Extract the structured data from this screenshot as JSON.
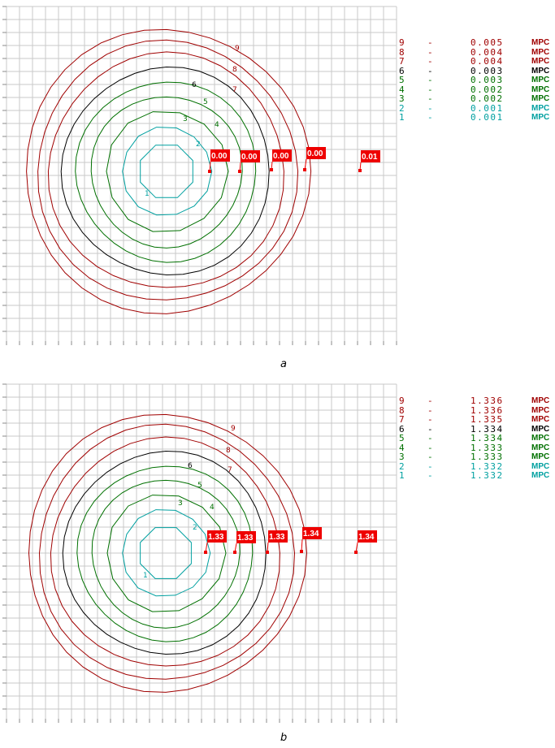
{
  "colors": {
    "grid": "#c8c8c8",
    "axis_ticks": "#888888",
    "marker": "#ee0000",
    "marker_text": "#ffffff",
    "level_colors": {
      "1": "#00a0a0",
      "2": "#00a0a0",
      "3": "#007000",
      "4": "#007000",
      "5": "#007000",
      "6": "#000000",
      "7": "#a00000",
      "8": "#a00000",
      "9": "#a00000"
    }
  },
  "panels": [
    {
      "caption": "a",
      "legend": [
        {
          "level": "9",
          "dash": "-",
          "value": "0.005",
          "unit": "MPC"
        },
        {
          "level": "8",
          "dash": "-",
          "value": "0.004",
          "unit": "MPC"
        },
        {
          "level": "7",
          "dash": "-",
          "value": "0.004",
          "unit": "MPC"
        },
        {
          "level": "6",
          "dash": "-",
          "value": "0.003",
          "unit": "MPC"
        },
        {
          "level": "5",
          "dash": "-",
          "value": "0.003",
          "unit": "MPC"
        },
        {
          "level": "4",
          "dash": "-",
          "value": "0.002",
          "unit": "MPC"
        },
        {
          "level": "3",
          "dash": "-",
          "value": "0.002",
          "unit": "MPC"
        },
        {
          "level": "2",
          "dash": "-",
          "value": "0.001",
          "unit": "MPC"
        },
        {
          "level": "1",
          "dash": "-",
          "value": "0.001",
          "unit": "MPC"
        }
      ],
      "contour_labels": [
        "1",
        "2",
        "3",
        "4",
        "5",
        "6",
        "7",
        "8",
        "9"
      ],
      "markers": [
        "0.00",
        "0.00",
        "0.00",
        "0.00",
        "0.01"
      ]
    },
    {
      "caption": "b",
      "legend": [
        {
          "level": "9",
          "dash": "-",
          "value": "1.336",
          "unit": "MPC"
        },
        {
          "level": "8",
          "dash": "-",
          "value": "1.336",
          "unit": "MPC"
        },
        {
          "level": "7",
          "dash": "-",
          "value": "1.335",
          "unit": "MPC"
        },
        {
          "level": "6",
          "dash": "-",
          "value": "1.334",
          "unit": "MPC"
        },
        {
          "level": "5",
          "dash": "-",
          "value": "1.334",
          "unit": "MPC"
        },
        {
          "level": "4",
          "dash": "-",
          "value": "1.333",
          "unit": "MPC"
        },
        {
          "level": "3",
          "dash": "-",
          "value": "1.333",
          "unit": "MPC"
        },
        {
          "level": "2",
          "dash": "-",
          "value": "1.332",
          "unit": "MPC"
        },
        {
          "level": "1",
          "dash": "-",
          "value": "1.332",
          "unit": "MPC"
        }
      ],
      "contour_labels": [
        "1",
        "2",
        "3",
        "4",
        "5",
        "6",
        "7",
        "8",
        "9"
      ],
      "markers": [
        "1.33",
        "1.33",
        "1.33",
        "1.34",
        "1.34"
      ]
    }
  ]
}
